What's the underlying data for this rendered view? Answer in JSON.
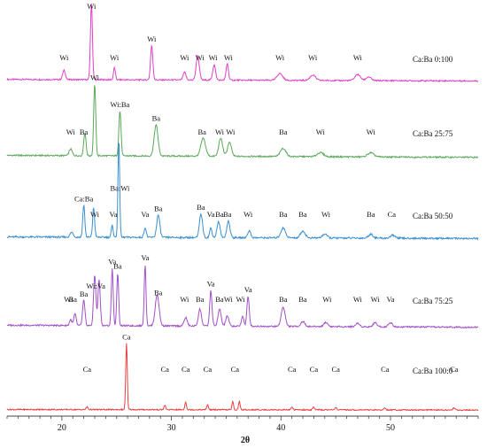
{
  "chart_data": {
    "type": "line",
    "xlabel": "2θ",
    "ylabel": "",
    "xlim": [
      15,
      58
    ],
    "xticks": [
      20,
      30,
      40,
      50
    ],
    "grid": false,
    "legend": "none",
    "series": [
      {
        "name": "Ca:Ba 0:100",
        "color": "#e040c8",
        "baseline": 0.05,
        "peaks": [
          [
            20.2,
            0.12,
            0.18
          ],
          [
            22.7,
            1.0,
            0.13
          ],
          [
            24.8,
            0.16,
            0.12
          ],
          [
            28.2,
            0.45,
            0.15
          ],
          [
            31.2,
            0.1,
            0.18
          ],
          [
            32.4,
            0.32,
            0.2
          ],
          [
            33.9,
            0.2,
            0.18
          ],
          [
            35.1,
            0.22,
            0.15
          ],
          [
            39.9,
            0.09,
            0.35
          ],
          [
            42.9,
            0.07,
            0.35
          ],
          [
            47.0,
            0.08,
            0.35
          ],
          [
            48.0,
            0.05,
            0.3
          ]
        ],
        "labels": [
          {
            "x": 20.2,
            "t": "Wi"
          },
          {
            "x": 22.7,
            "t": "Wi"
          },
          {
            "x": 24.8,
            "t": "Wi"
          },
          {
            "x": 28.2,
            "t": "Wi"
          },
          {
            "x": 31.2,
            "t": "Wi"
          },
          {
            "x": 32.6,
            "t": "Wi"
          },
          {
            "x": 33.8,
            "t": "Wi"
          },
          {
            "x": 35.2,
            "t": "Wi"
          },
          {
            "x": 39.9,
            "t": "Wi"
          },
          {
            "x": 42.9,
            "t": "Wi"
          },
          {
            "x": 47.0,
            "t": "Wi"
          }
        ]
      },
      {
        "name": "Ca:Ba 25:75",
        "color": "#5aa85a",
        "baseline": 0.06,
        "peaks": [
          [
            20.8,
            0.08,
            0.2
          ],
          [
            22.1,
            0.28,
            0.15
          ],
          [
            23.0,
            0.88,
            0.13
          ],
          [
            25.3,
            0.55,
            0.14
          ],
          [
            28.6,
            0.38,
            0.25
          ],
          [
            32.9,
            0.22,
            0.3
          ],
          [
            34.5,
            0.22,
            0.25
          ],
          [
            35.3,
            0.17,
            0.25
          ],
          [
            40.2,
            0.1,
            0.35
          ],
          [
            43.6,
            0.05,
            0.4
          ],
          [
            48.2,
            0.05,
            0.4
          ]
        ],
        "labels": [
          {
            "x": 20.8,
            "t": "Wi"
          },
          {
            "x": 22.0,
            "t": "Ba"
          },
          {
            "x": 23.0,
            "t": "Wi"
          },
          {
            "x": 25.3,
            "t": "Wi:Ba"
          },
          {
            "x": 28.6,
            "t": "Ba"
          },
          {
            "x": 32.8,
            "t": "Ba"
          },
          {
            "x": 34.4,
            "t": "Wi"
          },
          {
            "x": 35.4,
            "t": "Wi"
          },
          {
            "x": 40.2,
            "t": "Ba"
          },
          {
            "x": 43.6,
            "t": "Wi"
          },
          {
            "x": 48.2,
            "t": "Wi"
          }
        ]
      },
      {
        "name": "Ca:Ba 50:50",
        "color": "#3a8fd0",
        "baseline": 0.04,
        "peaks": [
          [
            20.9,
            0.05,
            0.2
          ],
          [
            22.0,
            0.33,
            0.13
          ],
          [
            22.9,
            0.3,
            0.13
          ],
          [
            24.6,
            0.12,
            0.12
          ],
          [
            25.2,
            1.0,
            0.11
          ],
          [
            27.6,
            0.1,
            0.15
          ],
          [
            28.8,
            0.23,
            0.2
          ],
          [
            32.7,
            0.24,
            0.2
          ],
          [
            33.6,
            0.1,
            0.15
          ],
          [
            34.3,
            0.16,
            0.2
          ],
          [
            35.2,
            0.17,
            0.2
          ],
          [
            37.1,
            0.07,
            0.2
          ],
          [
            40.2,
            0.1,
            0.3
          ],
          [
            42.0,
            0.07,
            0.3
          ],
          [
            44.0,
            0.04,
            0.3
          ],
          [
            48.2,
            0.04,
            0.3
          ],
          [
            50.2,
            0.03,
            0.3
          ]
        ],
        "labels": [
          {
            "x": 22.0,
            "t": "Ca:Ba"
          },
          {
            "x": 23.0,
            "t": "Wi"
          },
          {
            "x": 24.7,
            "t": "Va"
          },
          {
            "x": 25.3,
            "t": "Ba:Wi"
          },
          {
            "x": 27.6,
            "t": "Va"
          },
          {
            "x": 28.8,
            "t": "Ba"
          },
          {
            "x": 32.7,
            "t": "Ba"
          },
          {
            "x": 33.6,
            "t": "Va"
          },
          {
            "x": 34.4,
            "t": "Ba"
          },
          {
            "x": 35.1,
            "t": "Ba"
          },
          {
            "x": 37.0,
            "t": "Wi"
          },
          {
            "x": 40.2,
            "t": "Ba"
          },
          {
            "x": 42.0,
            "t": "Ba"
          },
          {
            "x": 44.1,
            "t": "Wi"
          },
          {
            "x": 48.2,
            "t": "Ba"
          },
          {
            "x": 50.1,
            "t": "Ca"
          }
        ]
      },
      {
        "name": "Ca:Ba 75:25",
        "color": "#a050c8",
        "baseline": 0.06,
        "peaks": [
          [
            20.8,
            0.07,
            0.15
          ],
          [
            21.2,
            0.14,
            0.15
          ],
          [
            22.0,
            0.3,
            0.15
          ],
          [
            23.0,
            0.6,
            0.15
          ],
          [
            23.4,
            0.55,
            0.15
          ],
          [
            24.6,
            0.68,
            0.12
          ],
          [
            25.1,
            0.63,
            0.12
          ],
          [
            27.6,
            0.73,
            0.12
          ],
          [
            28.7,
            0.37,
            0.25
          ],
          [
            31.3,
            0.1,
            0.2
          ],
          [
            32.6,
            0.2,
            0.2
          ],
          [
            33.6,
            0.42,
            0.15
          ],
          [
            34.4,
            0.2,
            0.2
          ],
          [
            35.1,
            0.12,
            0.2
          ],
          [
            36.5,
            0.12,
            0.15
          ],
          [
            37.0,
            0.35,
            0.15
          ],
          [
            40.2,
            0.23,
            0.25
          ],
          [
            42.0,
            0.06,
            0.25
          ],
          [
            44.1,
            0.05,
            0.25
          ],
          [
            47.0,
            0.04,
            0.25
          ],
          [
            48.6,
            0.05,
            0.25
          ],
          [
            50.0,
            0.05,
            0.25
          ]
        ],
        "labels": [
          {
            "x": 20.6,
            "t": "Wi"
          },
          {
            "x": 21.0,
            "t": "Ba"
          },
          {
            "x": 22.0,
            "t": "Ba"
          },
          {
            "x": 23.1,
            "t": "Wi:Va"
          },
          {
            "x": 24.6,
            "t": "Va"
          },
          {
            "x": 25.1,
            "t": "Ba"
          },
          {
            "x": 27.6,
            "t": "Va"
          },
          {
            "x": 28.8,
            "t": "Ba"
          },
          {
            "x": 31.2,
            "t": "Wi"
          },
          {
            "x": 32.6,
            "t": "Ba"
          },
          {
            "x": 33.6,
            "t": "Va"
          },
          {
            "x": 34.4,
            "t": "Ba"
          },
          {
            "x": 35.2,
            "t": "Wi"
          },
          {
            "x": 36.3,
            "t": "Wi"
          },
          {
            "x": 37.0,
            "t": "Va"
          },
          {
            "x": 40.2,
            "t": "Ba"
          },
          {
            "x": 42.0,
            "t": "Ba"
          },
          {
            "x": 44.2,
            "t": "Wi"
          },
          {
            "x": 47.0,
            "t": "Wi"
          },
          {
            "x": 48.6,
            "t": "Wi"
          },
          {
            "x": 50.0,
            "t": "Va"
          }
        ]
      },
      {
        "name": "Ca:Ba 100:0",
        "color": "#e84040",
        "baseline": 0.02,
        "peaks": [
          [
            22.3,
            0.04,
            0.12
          ],
          [
            25.9,
            1.0,
            0.1
          ],
          [
            29.4,
            0.07,
            0.1
          ],
          [
            31.3,
            0.12,
            0.1
          ],
          [
            33.3,
            0.08,
            0.1
          ],
          [
            35.6,
            0.12,
            0.1
          ],
          [
            36.2,
            0.13,
            0.1
          ],
          [
            41.0,
            0.04,
            0.12
          ],
          [
            43.0,
            0.04,
            0.12
          ],
          [
            45.0,
            0.04,
            0.12
          ],
          [
            49.5,
            0.03,
            0.12
          ],
          [
            55.8,
            0.03,
            0.12
          ]
        ],
        "labels": [
          {
            "x": 22.3,
            "t": "Ca"
          },
          {
            "x": 25.9,
            "t": "Ca"
          },
          {
            "x": 29.4,
            "t": "Ca"
          },
          {
            "x": 31.3,
            "t": "Ca"
          },
          {
            "x": 33.3,
            "t": "Ca"
          },
          {
            "x": 35.8,
            "t": "Ca"
          },
          {
            "x": 41.0,
            "t": "Ca"
          },
          {
            "x": 43.0,
            "t": "Ca"
          },
          {
            "x": 45.0,
            "t": "Ca"
          },
          {
            "x": 49.5,
            "t": "Ca"
          },
          {
            "x": 55.8,
            "t": "Ca"
          }
        ]
      }
    ]
  }
}
